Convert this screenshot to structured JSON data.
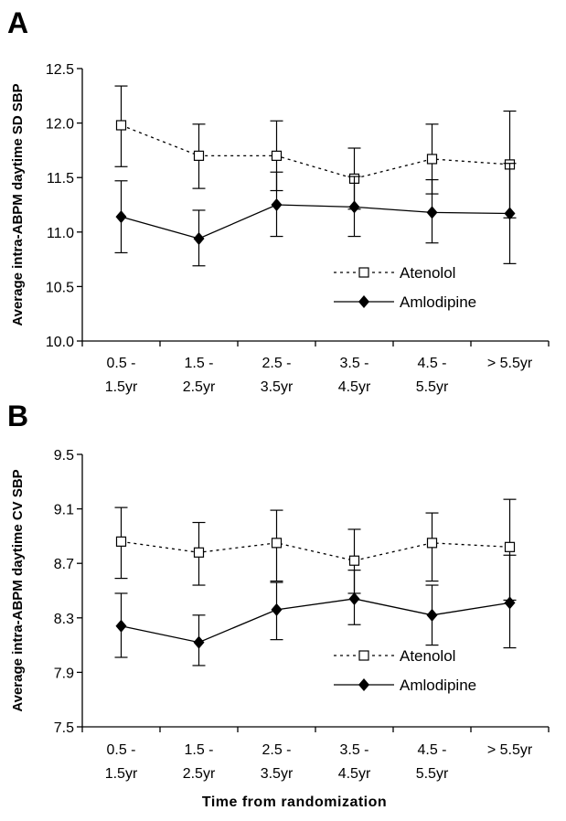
{
  "figure": {
    "xlabel": "Time from randomization"
  },
  "chart_data": [
    {
      "panel": "A",
      "type": "line",
      "ylabel": "Average intra-ABPM daytime SD SBP",
      "ylim": [
        10.0,
        12.5
      ],
      "yticks": [
        "10.0",
        "10.5",
        "11.0",
        "11.5",
        "12.0",
        "12.5"
      ],
      "categories": [
        [
          "0.5 -",
          "1.5yr"
        ],
        [
          "1.5 -",
          "2.5yr"
        ],
        [
          "2.5 -",
          "3.5yr"
        ],
        [
          "3.5 -",
          "4.5yr"
        ],
        [
          "4.5 -",
          "5.5yr"
        ],
        [
          "> 5.5yr",
          ""
        ]
      ],
      "legend_position": "lower-right",
      "series": [
        {
          "name": "Atenolol",
          "style": "dashed",
          "marker": "open-square",
          "values": [
            11.98,
            11.7,
            11.7,
            11.49,
            11.67,
            11.62
          ],
          "err_low": [
            11.6,
            11.4,
            11.38,
            11.21,
            11.35,
            11.13
          ],
          "err_high": [
            12.34,
            11.99,
            12.02,
            11.77,
            11.99,
            12.11
          ]
        },
        {
          "name": "Amlodipine",
          "style": "solid",
          "marker": "filled-diamond",
          "values": [
            11.14,
            10.94,
            11.25,
            11.23,
            11.18,
            11.17
          ],
          "err_low": [
            10.81,
            10.69,
            10.96,
            10.96,
            10.9,
            10.71
          ],
          "err_high": [
            11.47,
            11.2,
            11.55,
            11.51,
            11.48,
            11.63
          ]
        }
      ]
    },
    {
      "panel": "B",
      "type": "line",
      "ylabel": "Average intra-ABPM daytime CV SBP",
      "ylim": [
        7.5,
        9.5
      ],
      "yticks": [
        "7.5",
        "7.9",
        "8.3",
        "8.7",
        "9.1",
        "9.5"
      ],
      "categories": [
        [
          "0.5 -",
          "1.5yr"
        ],
        [
          "1.5 -",
          "2.5yr"
        ],
        [
          "2.5 -",
          "3.5yr"
        ],
        [
          "3.5 -",
          "4.5yr"
        ],
        [
          "4.5 -",
          "5.5yr"
        ],
        [
          "> 5.5yr",
          ""
        ]
      ],
      "legend_position": "lower-right",
      "series": [
        {
          "name": "Atenolol",
          "style": "dashed",
          "marker": "open-square",
          "values": [
            8.86,
            8.78,
            8.85,
            8.72,
            8.85,
            8.82
          ],
          "err_low": [
            8.59,
            8.54,
            8.57,
            8.48,
            8.57,
            8.43
          ],
          "err_high": [
            9.11,
            9.0,
            9.09,
            8.95,
            9.07,
            9.17
          ]
        },
        {
          "name": "Amlodipine",
          "style": "solid",
          "marker": "filled-diamond",
          "values": [
            8.24,
            8.12,
            8.36,
            8.44,
            8.32,
            8.41
          ],
          "err_low": [
            8.01,
            7.95,
            8.14,
            8.25,
            8.1,
            8.08
          ],
          "err_high": [
            8.48,
            8.32,
            8.56,
            8.65,
            8.54,
            8.76
          ]
        }
      ]
    }
  ]
}
